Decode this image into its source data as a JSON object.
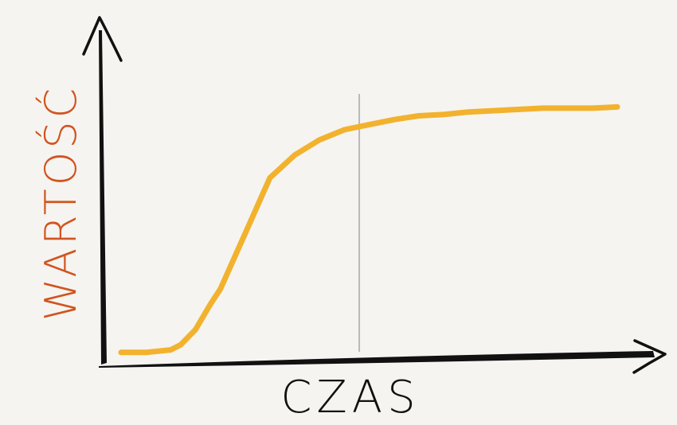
{
  "colors": {
    "background": "#f6f4f0",
    "axis": "#111111",
    "curve": "#f2b22e",
    "ylabel": "#d1541f",
    "xlabel": "#111111",
    "marker": "#b9b9b9"
  },
  "chart_data": {
    "type": "line",
    "title": "",
    "xlabel": "CZAS",
    "ylabel": "WARTOŚĆ",
    "grid": false,
    "legend": "none",
    "series": [
      {
        "x": [
          0,
          0.5,
          1,
          1.2,
          1.5,
          1.8,
          2,
          2.5,
          3,
          3.5,
          4,
          4.5,
          5,
          5.5,
          6,
          6.5,
          7,
          7.5,
          8,
          8.5,
          9,
          9.5,
          10
        ],
        "values": [
          0.01,
          0.01,
          0.02,
          0.04,
          0.1,
          0.2,
          0.26,
          0.48,
          0.7,
          0.79,
          0.85,
          0.89,
          0.91,
          0.93,
          0.945,
          0.95,
          0.96,
          0.965,
          0.97,
          0.975,
          0.975,
          0.975,
          0.98
        ]
      }
    ],
    "vertical_marker_x": 4.8
  }
}
